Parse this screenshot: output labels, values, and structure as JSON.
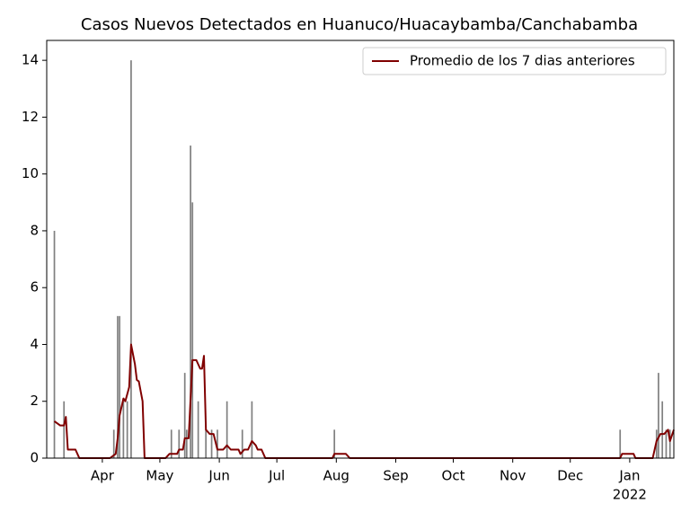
{
  "chart_data": {
    "type": "bar_line",
    "title": "Casos Nuevos Detectados en Huanuco/Huacaybamba/Canchabamba",
    "xlim": [
      0,
      327
    ],
    "xticks": [
      {
        "value": 29,
        "label": "Apr"
      },
      {
        "value": 59,
        "label": "May"
      },
      {
        "value": 90,
        "label": "Jun"
      },
      {
        "value": 120,
        "label": "Jul"
      },
      {
        "value": 151,
        "label": "Aug"
      },
      {
        "value": 182,
        "label": "Sep"
      },
      {
        "value": 212,
        "label": "Oct"
      },
      {
        "value": 243,
        "label": "Nov"
      },
      {
        "value": 273,
        "label": "Dec"
      },
      {
        "value": 304,
        "label": "Jan"
      }
    ],
    "x_year_label": {
      "value": 304,
      "label": "2022"
    },
    "ylim": [
      0,
      14.7
    ],
    "yticks": [
      0,
      2,
      4,
      6,
      8,
      10,
      12,
      14
    ],
    "legend": "upper right",
    "series": [
      {
        "kind": "bar",
        "color": "#808080",
        "x": [
          4,
          9,
          35,
          37,
          38,
          40,
          42,
          44,
          65,
          69,
          72,
          73,
          75,
          76,
          79,
          83,
          86,
          89,
          94,
          102,
          107,
          150,
          299,
          318,
          319,
          321,
          323,
          325
        ],
        "values": [
          8,
          2,
          1,
          5,
          5,
          2,
          2,
          14,
          1,
          1,
          3,
          1,
          11,
          9,
          2,
          1,
          1,
          1,
          2,
          1,
          2,
          1,
          1,
          1,
          3,
          2,
          1,
          1
        ]
      },
      {
        "kind": "line",
        "name": "Promedio de los 7 dias anteriores",
        "color": "#800000",
        "x": [
          4,
          7,
          9,
          10,
          11,
          15,
          17,
          33,
          36,
          37,
          38,
          40,
          41,
          43,
          44,
          46,
          47,
          48,
          50,
          51,
          62,
          64,
          68,
          69,
          71,
          72,
          74,
          76,
          78,
          80,
          81,
          82,
          83,
          85,
          87,
          89,
          92,
          94,
          96,
          100,
          101,
          103,
          105,
          107,
          109,
          110,
          112,
          114,
          149,
          150,
          156,
          158,
          299,
          300,
          306,
          307,
          316,
          318,
          320,
          322,
          324,
          325,
          327
        ],
        "values": [
          1.3,
          1.15,
          1.15,
          1.45,
          0.3,
          0.3,
          0,
          0,
          0.15,
          0.7,
          1.5,
          2.1,
          2.0,
          2.5,
          4.0,
          3.3,
          2.75,
          2.7,
          2.0,
          0,
          0,
          0.15,
          0.15,
          0.3,
          0.3,
          0.7,
          0.7,
          3.45,
          3.45,
          3.15,
          3.15,
          3.6,
          1.0,
          0.85,
          0.85,
          0.3,
          0.3,
          0.45,
          0.3,
          0.3,
          0.15,
          0.3,
          0.3,
          0.6,
          0.45,
          0.3,
          0.3,
          0,
          0,
          0.15,
          0.15,
          0,
          0,
          0.15,
          0.15,
          0,
          0,
          0.6,
          0.85,
          0.85,
          1.0,
          0.6,
          1.0
        ]
      }
    ]
  }
}
